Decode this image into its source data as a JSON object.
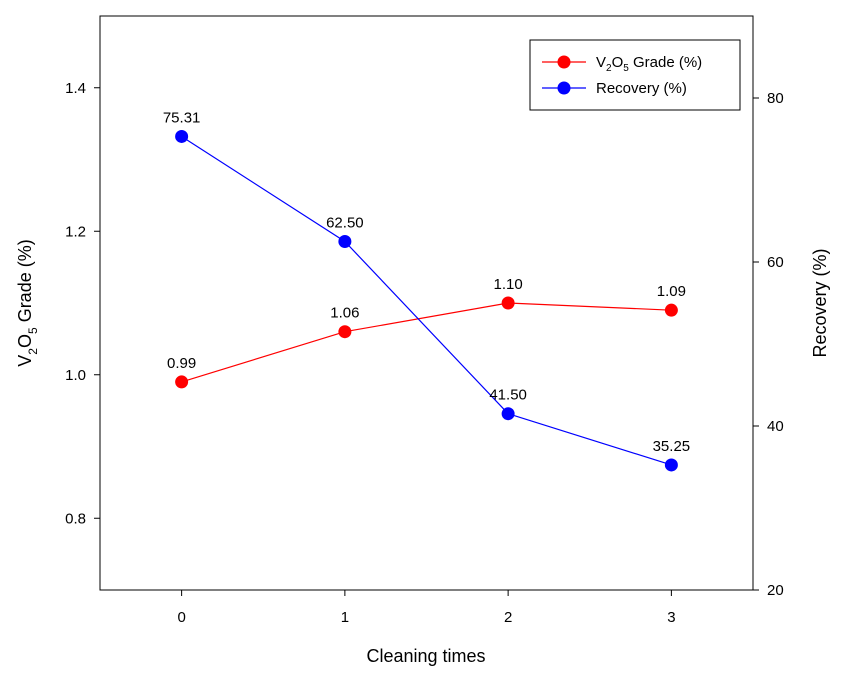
{
  "chart_data": {
    "type": "line",
    "x": [
      0,
      1,
      2,
      3
    ],
    "xlabel": "Cleaning times",
    "x_ticks": [
      "0",
      "1",
      "2",
      "3"
    ],
    "xlim": [
      -0.5,
      3.5
    ],
    "ylabel_left": {
      "main_v": "V",
      "sub_2": "2",
      "main_o": "O",
      "sub_5": "5",
      "rest": " Grade (%)"
    },
    "ylim_left": [
      0.7,
      1.5
    ],
    "y_ticks_left": [
      "0.8",
      "1.0",
      "1.2",
      "1.4"
    ],
    "ylabel_right": "Recovery (%)",
    "ylim_right": [
      20,
      90
    ],
    "y_ticks_right": [
      "20",
      "40",
      "60",
      "80"
    ],
    "series": [
      {
        "name": "V2O5 Grade (%)",
        "axis": "left",
        "color": "#ff0000",
        "values": [
          0.99,
          1.06,
          1.1,
          1.09
        ],
        "labels": [
          "0.99",
          "1.06",
          "1.10",
          "1.09"
        ]
      },
      {
        "name": "Recovery (%)",
        "axis": "right",
        "color": "#0000ff",
        "values": [
          75.31,
          62.5,
          41.5,
          35.25
        ],
        "labels": [
          "75.31",
          "62.50",
          "41.50",
          "35.25"
        ]
      }
    ],
    "legend": {
      "placement": "top-right",
      "grade": {
        "main_v": "V",
        "sub_2": "2",
        "main_o": "O",
        "sub_5": "5",
        "rest": " Grade (%)"
      },
      "recovery": "Recovery (%)"
    }
  }
}
